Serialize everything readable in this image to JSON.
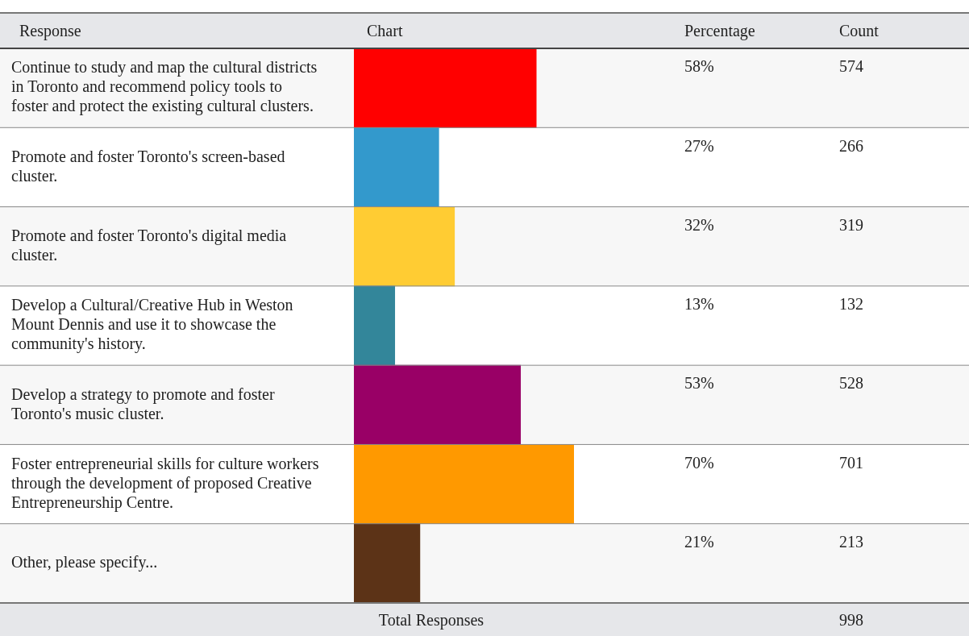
{
  "chart_data": {
    "type": "bar",
    "orientation": "horizontal",
    "ylabel": "Response",
    "xlabel": "Chart",
    "categories": [
      "Continue to study and map the cultural districts in Toronto and recommend policy tools to foster and protect the existing cultural clusters.",
      "Promote and foster Toronto's screen-based cluster.",
      "Promote and foster Toronto's digital media cluster.",
      "Develop a Cultural/Creative Hub in Weston Mount Dennis and use it to showcase the community's history.",
      "Develop a strategy to promote and foster Toronto's music cluster.",
      "Foster entrepreneurial skills for culture workers through the development of proposed Creative Entrepreneurship Centre.",
      "Other, please specify..."
    ],
    "values": [
      58,
      27,
      32,
      13,
      53,
      70,
      21
    ],
    "colors": [
      "#ff0000",
      "#3399cc",
      "#ffcc33",
      "#33869a",
      "#990066",
      "#ff9900",
      "#5c3317"
    ],
    "value_labels": [
      "58%",
      "27%",
      "32%",
      "13%",
      "53%",
      "70%",
      "21%"
    ],
    "tick_labels": "y",
    "grid": false,
    "legend": false,
    "annotations": [
      "574",
      "266",
      "319",
      "132",
      "528",
      "701",
      "213",
      "Percentage",
      "Count",
      "Total Responses",
      "998"
    ]
  }
}
